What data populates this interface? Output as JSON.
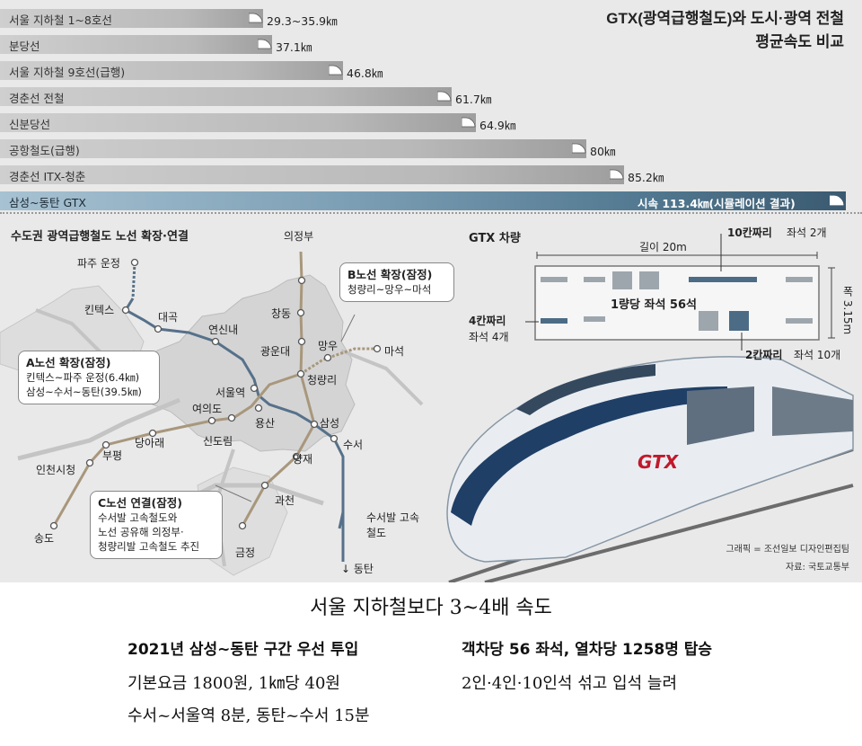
{
  "chart_data": {
    "type": "bar",
    "title": "GTX(광역급행철도)와 도시·광역 전철",
    "subtitle": "평균속도 비교",
    "unit": "km",
    "xlim": [
      0,
      120
    ],
    "categories": [
      "서울 지하철 1~8호선",
      "분당선",
      "서울 지하철 9호선(급행)",
      "경춘선 전철",
      "신분당선",
      "공항철도(급행)",
      "경춘선 ITX-청춘",
      "삼성~동탄 GTX"
    ],
    "values": [
      35.9,
      37.1,
      46.8,
      61.7,
      64.9,
      80,
      85.2,
      113.4
    ],
    "value_labels": [
      "29.3~35.9㎞",
      "37.1㎞",
      "46.8㎞",
      "61.7㎞",
      "64.9㎞",
      "80㎞",
      "85.2㎞",
      "시속 113.4㎞(시뮬레이션 결과)"
    ],
    "highlight_color": "#3a5a70",
    "bar_color": "#bdbdbd"
  },
  "map": {
    "title": "수도권 광역급행철도 노선 확장·연결",
    "stations": [
      "파주 운정",
      "킨텍스",
      "대곡",
      "연신내",
      "의정부",
      "창동",
      "광운대",
      "망우",
      "마석",
      "청량리",
      "서울역",
      "여의도",
      "용산",
      "신도림",
      "당아래",
      "부평",
      "인천시청",
      "송도",
      "삼성",
      "수서",
      "양재",
      "과천",
      "금정",
      "수서발 고속철도",
      "↓ 동탄"
    ],
    "callouts": {
      "a": {
        "title": "A노선 확장(잠정)",
        "lines": [
          "킨텍스~파주 운정(6.4㎞)",
          "삼성~수서~동탄(39.5㎞)"
        ]
      },
      "b": {
        "title": "B노선 확장(잠정)",
        "lines": [
          "청량리~망우~마석"
        ]
      },
      "c": {
        "title": "C노선 연결(잠정)",
        "lines": [
          "수서발 고속철도와",
          "노선 공유해 의정부·",
          "청량리발 고속철도 추진"
        ]
      }
    },
    "colors": {
      "line_a": "#56718a",
      "line_bc": "#a8977c",
      "road": "#b9b9b9"
    }
  },
  "car": {
    "title": "GTX 차량",
    "length": "길이 20m",
    "width": "폭 3.15m",
    "ten_seat": "10칸짜리",
    "ten_seat_count": "좌석 2개",
    "four_seat": "4칸짜리",
    "four_seat_count": "좌석 4개",
    "two_seat": "2칸짜리",
    "two_seat_count": "좌석 10개",
    "per_car": "1량당 좌석 56석",
    "train_logo": "GTX",
    "credit": "그래픽 = 조선일보 디자인편집팀",
    "source": "자료: 국토교통부"
  },
  "article": {
    "headline": "서울 지하철보다 3~4배 속도",
    "left_heading": "2021년 삼성~동탄 구간 우선 투입",
    "left_lines": [
      "기본요금 1800원, 1㎞당 40원",
      "수서~서울역 8분, 동탄~수서 15분"
    ],
    "right_heading": "객차당 56 좌석, 열차당 1258명 탑승",
    "right_lines": [
      "2인·4인·10인석 섞고 입석 늘려"
    ]
  }
}
